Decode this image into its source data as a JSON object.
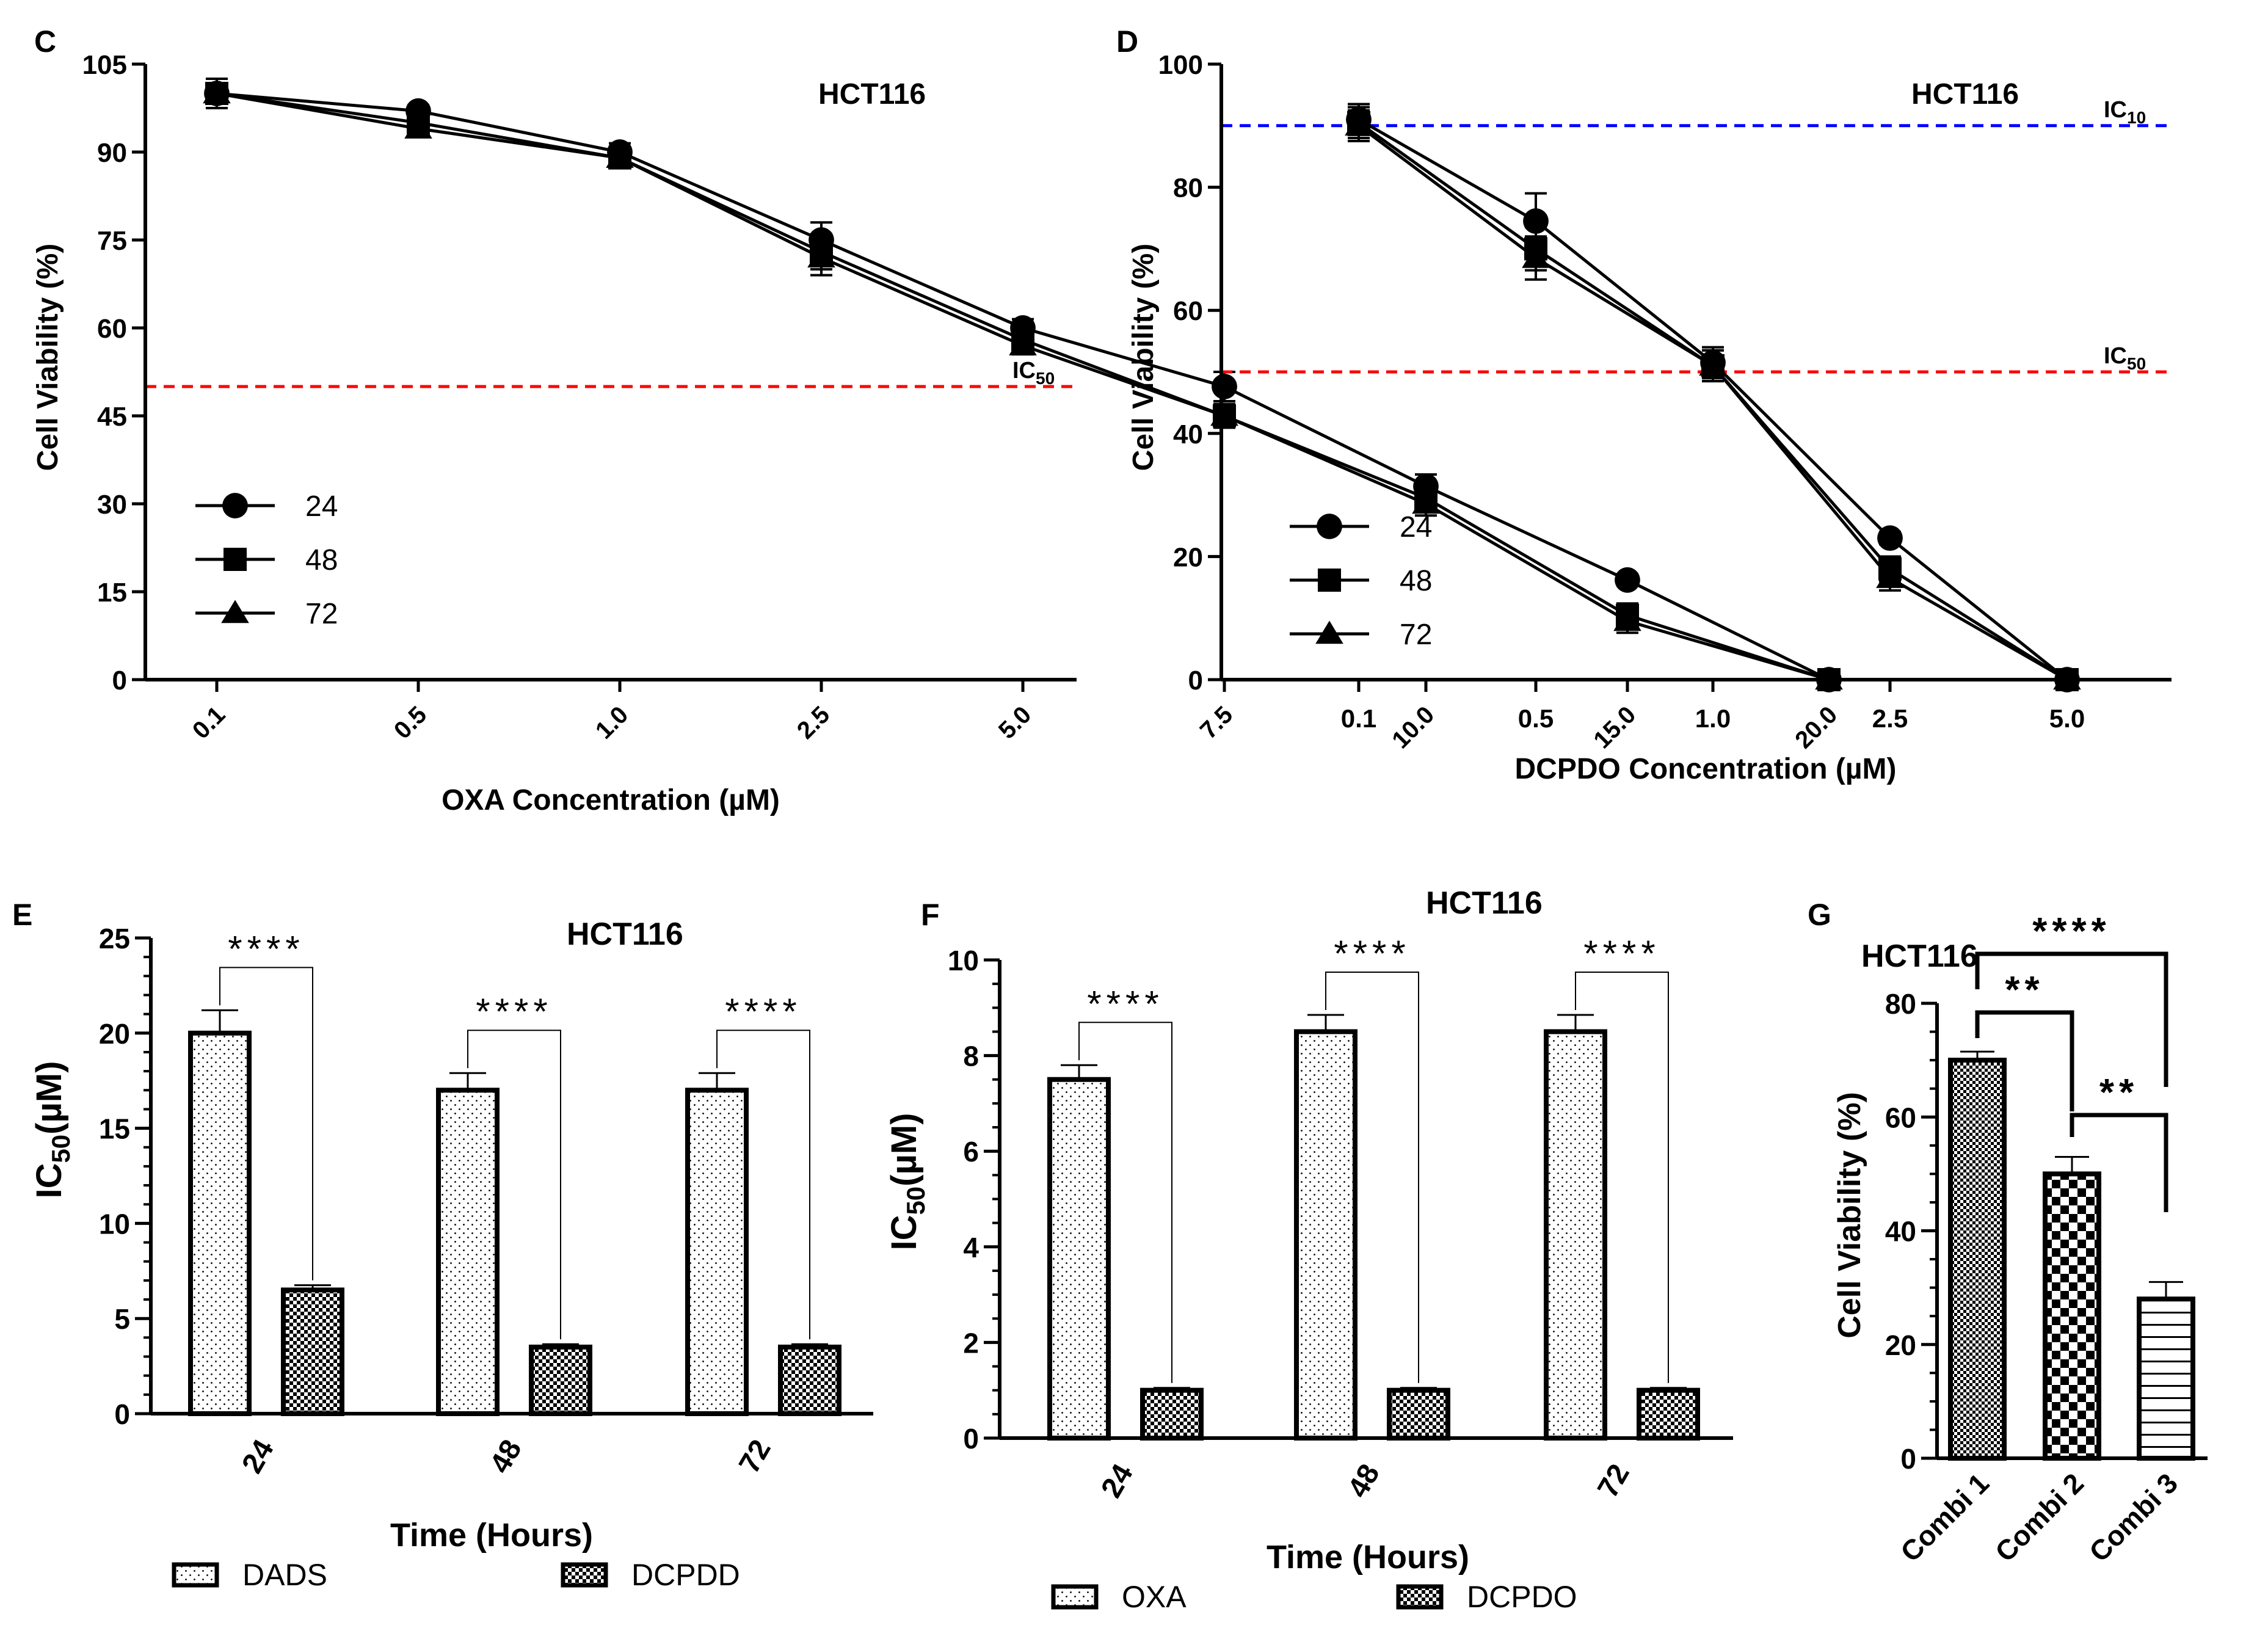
{
  "colors": {
    "black": "#000000",
    "red": "#ff0000",
    "blue": "#0000ff",
    "white": "#ffffff"
  },
  "chart_data": [
    {
      "panel": "C",
      "type": "line",
      "title": "HCT116",
      "xlabel": "OXA Concentration (µM)",
      "ylabel": "Cell Viability (%)",
      "categories": [
        "0.1",
        "0.5",
        "1.0",
        "2.5",
        "5.0",
        "7.5",
        "10.0",
        "15.0",
        "20.0"
      ],
      "ylim": [
        0,
        105
      ],
      "yticks": [
        "0",
        "15",
        "30",
        "45",
        "60",
        "75",
        "90",
        "105"
      ],
      "reference_lines": [
        {
          "prefix": "IC",
          "sub": "50",
          "value": 50,
          "color": "#ff0000"
        }
      ],
      "legend": [
        "24",
        "48",
        "72"
      ],
      "series": [
        {
          "name": "24",
          "marker": "circle",
          "values": [
            100,
            97,
            90,
            75,
            60,
            50,
            33,
            17,
            0
          ],
          "errors": [
            2.5,
            1,
            1.5,
            3,
            1.5,
            2.5,
            2,
            1,
            1
          ]
        },
        {
          "name": "48",
          "marker": "square",
          "values": [
            100,
            95,
            89,
            73,
            58,
            45,
            31,
            11,
            0
          ],
          "errors": [
            2.5,
            1,
            1.5,
            3,
            1.5,
            2,
            2,
            2,
            1
          ]
        },
        {
          "name": "72",
          "marker": "triangle",
          "values": [
            100,
            94,
            89,
            72,
            57,
            45,
            30,
            10,
            0
          ],
          "errors": [
            2.5,
            1,
            1.5,
            3,
            1.5,
            2,
            2,
            2,
            1
          ]
        }
      ]
    },
    {
      "panel": "D",
      "type": "line",
      "title": "HCT116",
      "xlabel": "DCPDO Concentration (µM)",
      "ylabel": "Cell Viability (%)",
      "categories": [
        "0.1",
        "0.5",
        "1.0",
        "2.5",
        "5.0"
      ],
      "ylim": [
        0,
        100
      ],
      "yticks": [
        "0",
        "20",
        "40",
        "60",
        "80",
        "100"
      ],
      "reference_lines": [
        {
          "prefix": "IC",
          "sub": "10",
          "value": 90,
          "color": "#0000ff"
        },
        {
          "prefix": "IC",
          "sub": "50",
          "value": 50,
          "color": "#ff0000"
        }
      ],
      "legend": [
        "24",
        "48",
        "72"
      ],
      "series": [
        {
          "name": "24",
          "marker": "circle",
          "values": [
            91,
            74.5,
            51.5,
            23,
            0
          ],
          "errors": [
            2.5,
            4.5,
            2.5,
            1,
            1
          ]
        },
        {
          "name": "48",
          "marker": "square",
          "values": [
            90.5,
            70,
            51,
            18,
            0
          ],
          "errors": [
            2.5,
            3.5,
            2.5,
            2,
            1
          ]
        },
        {
          "name": "72",
          "marker": "triangle",
          "values": [
            90,
            68.5,
            51,
            16.5,
            0
          ],
          "errors": [
            2.5,
            3.5,
            2.5,
            2,
            1
          ]
        }
      ]
    },
    {
      "panel": "E",
      "type": "bar",
      "title": "HCT116",
      "xlabel": "Time (Hours)",
      "ylabel_prefix": "IC",
      "ylabel_sub": "50",
      "ylabel_suffix": "(µM)",
      "categories": [
        "24",
        "48",
        "72"
      ],
      "ylim": [
        0,
        25
      ],
      "yticks": [
        "0",
        "5",
        "10",
        "15",
        "20",
        "25"
      ],
      "series": [
        {
          "name": "DADS",
          "pattern": "dots",
          "values": [
            20,
            17,
            17
          ],
          "errors": [
            1.2,
            0.9,
            0.9
          ]
        },
        {
          "name": "DCPDD",
          "pattern": "checker",
          "values": [
            6.5,
            3.5,
            3.5
          ],
          "errors": [
            0.25,
            0.15,
            0.15
          ]
        }
      ],
      "significance": [
        "****",
        "****",
        "****"
      ]
    },
    {
      "panel": "F",
      "type": "bar",
      "title": "HCT116",
      "xlabel": "Time (Hours)",
      "ylabel_prefix": "IC",
      "ylabel_sub": "50",
      "ylabel_suffix": "(µM)",
      "categories": [
        "24",
        "48",
        "72"
      ],
      "ylim": [
        0,
        10
      ],
      "yticks": [
        "0",
        "2",
        "4",
        "6",
        "8",
        "10"
      ],
      "series": [
        {
          "name": "OXA",
          "pattern": "dots",
          "values": [
            7.5,
            8.5,
            8.5
          ],
          "errors": [
            0.3,
            0.35,
            0.35
          ]
        },
        {
          "name": "DCPDO",
          "pattern": "checker",
          "values": [
            1.0,
            1.0,
            1.0
          ],
          "errors": [
            0.05,
            0.05,
            0.05
          ]
        }
      ],
      "significance": [
        "****",
        "****",
        "****"
      ]
    },
    {
      "panel": "G",
      "type": "bar",
      "title": "HCT116",
      "xlabel": "",
      "ylabel": "Cell Viability (%)",
      "categories": [
        "Combi 1",
        "Combi 2",
        "Combi 3"
      ],
      "ylim": [
        0,
        80
      ],
      "yticks": [
        "0",
        "20",
        "40",
        "60",
        "80"
      ],
      "values": [
        70,
        50,
        28
      ],
      "errors": [
        1.5,
        3,
        3
      ],
      "patterns": [
        "fine-checker",
        "checker",
        "hlines"
      ],
      "comparisons": [
        {
          "from": "Combi 1",
          "to": "Combi 3",
          "label": "****"
        },
        {
          "from": "Combi 1",
          "to": "Combi 2",
          "label": "**"
        },
        {
          "from": "Combi 2",
          "to": "Combi 3",
          "label": "**"
        }
      ]
    }
  ]
}
